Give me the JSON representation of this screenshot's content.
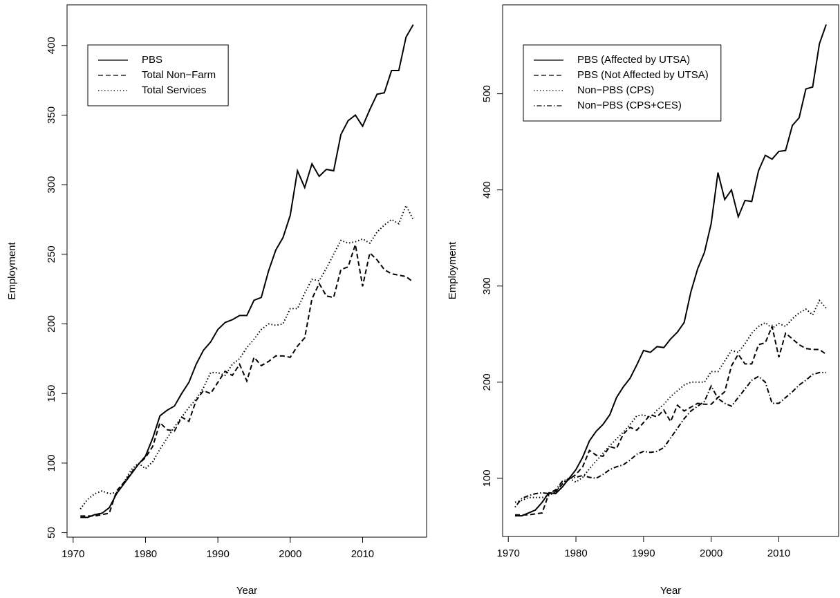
{
  "chart_data": [
    {
      "type": "line",
      "xlabel": "Year",
      "ylabel": "Employment",
      "x": [
        1971,
        1972,
        1973,
        1974,
        1975,
        1976,
        1977,
        1978,
        1979,
        1980,
        1981,
        1982,
        1983,
        1984,
        1985,
        1986,
        1987,
        1988,
        1989,
        1990,
        1991,
        1992,
        1993,
        1994,
        1995,
        1996,
        1997,
        1998,
        1999,
        2000,
        2001,
        2002,
        2003,
        2004,
        2005,
        2006,
        2007,
        2008,
        2009,
        2010,
        2011,
        2012,
        2013,
        2014,
        2015,
        2016,
        2017
      ],
      "xlim": [
        1969.16,
        2018.84
      ],
      "xticks": [
        1970,
        1980,
        1990,
        2000,
        2010
      ],
      "ylim": [
        46.8,
        429.2
      ],
      "yticks": [
        50,
        100,
        150,
        200,
        250,
        300,
        350,
        400
      ],
      "legend": "topleft",
      "series": [
        {
          "name": "PBS",
          "color": "#000000",
          "linestyle": "solid",
          "values": [
            61,
            61,
            63,
            64,
            68,
            78,
            85,
            92,
            99,
            105,
            118,
            134,
            138,
            141,
            150,
            158,
            171,
            181,
            187,
            196,
            201,
            203,
            206,
            206,
            217,
            219,
            238,
            253,
            262,
            278,
            310,
            298,
            315,
            306,
            311,
            310,
            336,
            346,
            350,
            342,
            354,
            365,
            366,
            382,
            382,
            406,
            415
          ]
        },
        {
          "name": "Total Non−Farm",
          "color": "#000000",
          "linestyle": "dashed",
          "values": [
            62,
            62,
            62,
            63,
            64,
            80,
            86,
            93,
            99,
            104,
            112,
            129,
            124,
            123,
            133,
            130,
            145,
            152,
            150,
            158,
            166,
            163,
            171,
            159,
            176,
            170,
            173,
            177,
            177,
            176,
            184,
            190,
            218,
            229,
            220,
            219,
            239,
            241,
            257,
            227,
            251,
            246,
            239,
            236,
            235,
            234,
            230
          ]
        },
        {
          "name": "Total Services",
          "color": "#000000",
          "linestyle": "dotted",
          "values": [
            67,
            74,
            78,
            80,
            78,
            79,
            86,
            95,
            100,
            96,
            101,
            110,
            118,
            126,
            133,
            140,
            146,
            154,
            165,
            165,
            163,
            171,
            175,
            183,
            189,
            196,
            200,
            199,
            200,
            211,
            211,
            222,
            232,
            231,
            240,
            250,
            260,
            258,
            259,
            261,
            258,
            266,
            271,
            275,
            272,
            285,
            275
          ]
        }
      ]
    },
    {
      "type": "line",
      "xlabel": "Year",
      "ylabel": "Employment",
      "x": [
        1971,
        1972,
        1973,
        1974,
        1975,
        1976,
        1977,
        1978,
        1979,
        1980,
        1981,
        1982,
        1983,
        1984,
        1985,
        1986,
        1987,
        1988,
        1989,
        1990,
        1991,
        1992,
        1993,
        1994,
        1995,
        1996,
        1997,
        1998,
        1999,
        2000,
        2001,
        2002,
        2003,
        2004,
        2005,
        2006,
        2007,
        2008,
        2009,
        2010,
        2011,
        2012,
        2013,
        2014,
        2015,
        2016,
        2017
      ],
      "xlim": [
        1969.16,
        2018.84
      ],
      "xticks": [
        1970,
        1980,
        1990,
        2000,
        2010
      ],
      "ylim": [
        39.5,
        592.5
      ],
      "yticks": [
        100,
        200,
        300,
        400,
        500
      ],
      "legend": "topleft",
      "series": [
        {
          "name": "PBS (Affected by UTSA)",
          "color": "#000000",
          "linestyle": "solid",
          "values": [
            61,
            61,
            64,
            67,
            75,
            85,
            84,
            91,
            100,
            109,
            122,
            139,
            149,
            156,
            166,
            184,
            195,
            204,
            218,
            233,
            231,
            237,
            236,
            245,
            252,
            262,
            294,
            318,
            335,
            365,
            418,
            390,
            400,
            372,
            389,
            388,
            420,
            436,
            432,
            440,
            441,
            467,
            475,
            505,
            507,
            552,
            572
          ]
        },
        {
          "name": "PBS (Not Affected by UTSA)",
          "color": "#000000",
          "linestyle": "dashed",
          "values": [
            62,
            62,
            62,
            63,
            64,
            84,
            86,
            94,
            99,
            104,
            112,
            129,
            124,
            123,
            133,
            131,
            146,
            153,
            150,
            158,
            166,
            164,
            171,
            159,
            176,
            170,
            174,
            178,
            177,
            177,
            184,
            190,
            217,
            229,
            219,
            219,
            239,
            241,
            258,
            226,
            251,
            245,
            239,
            235,
            234,
            234,
            229
          ]
        },
        {
          "name": "Non−PBS (CPS)",
          "color": "#000000",
          "linestyle": "dotted",
          "values": [
            75,
            77,
            80,
            80,
            80,
            82,
            86,
            95,
            100,
            96,
            101,
            110,
            118,
            126,
            134,
            141,
            148,
            156,
            165,
            166,
            163,
            171,
            177,
            185,
            191,
            197,
            200,
            200,
            200,
            211,
            211,
            222,
            233,
            231,
            240,
            251,
            258,
            262,
            256,
            261,
            258,
            266,
            272,
            276,
            270,
            285,
            277
          ]
        },
        {
          "name": "Non−PBS (CPS+CES)",
          "color": "#000000",
          "linestyle": "dotdash",
          "values": [
            70,
            79,
            82,
            84,
            85,
            84,
            88,
            97,
            100,
            101,
            103,
            101,
            100,
            104,
            109,
            112,
            114,
            119,
            125,
            128,
            127,
            128,
            132,
            142,
            152,
            162,
            170,
            175,
            180,
            196,
            183,
            178,
            175,
            184,
            193,
            202,
            206,
            200,
            178,
            178,
            184,
            190,
            197,
            202,
            208,
            210,
            210
          ]
        }
      ]
    }
  ]
}
